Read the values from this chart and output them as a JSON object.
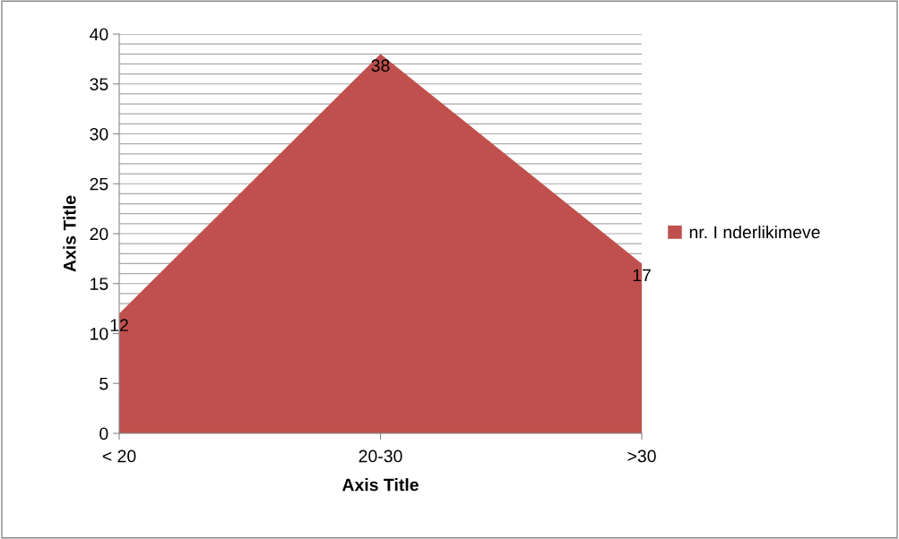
{
  "chart_data": {
    "type": "area",
    "categories": [
      "< 20",
      "20-30",
      ">30"
    ],
    "series": [
      {
        "name": "nr. I nderlikimeve",
        "color": "#c0504d",
        "values": [
          12,
          38,
          17
        ],
        "value_labels": [
          "12",
          "38",
          "17"
        ]
      }
    ],
    "xlabel": "Axis Title",
    "ylabel": "Axis Title",
    "ylim": [
      0,
      40
    ],
    "yticks": [
      0,
      5,
      10,
      15,
      20,
      25,
      30,
      35,
      40
    ],
    "grid": "y",
    "legend": "right"
  }
}
